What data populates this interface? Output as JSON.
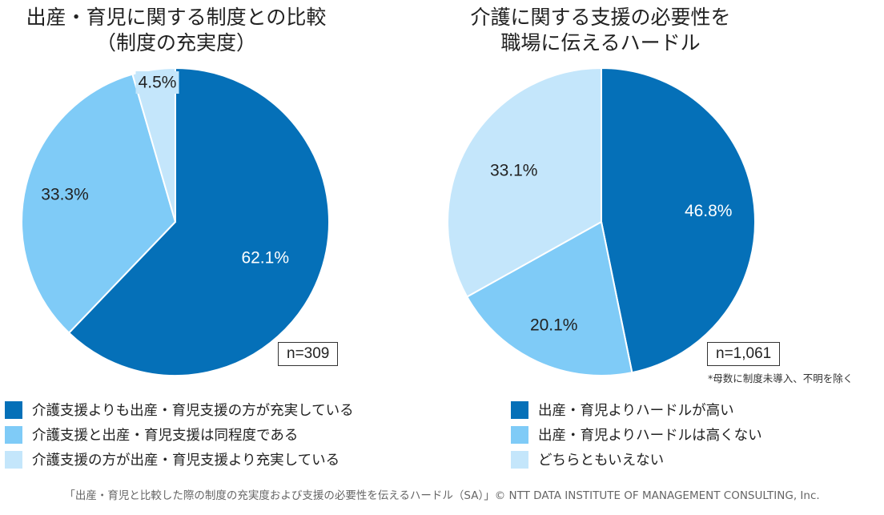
{
  "chart_data": [
    {
      "type": "pie",
      "title": "出産・育児に関する制度との比較\n（制度の充実度）",
      "n_label": "n=309",
      "labels": [
        "介護支援よりも出産・育児支援の方が充実している",
        "介護支援と出産・育児支援は同程度である",
        "介護支援の方が出産・育児支援より充実している"
      ],
      "values": [
        62.1,
        33.3,
        4.5
      ],
      "value_labels": [
        "62.1%",
        "33.3%",
        "4.5%"
      ],
      "colors": [
        "#0570b8",
        "#7fcbf7",
        "#c4e6fb"
      ]
    },
    {
      "type": "pie",
      "title": "介護に関する支援の必要性を\n職場に伝えるハードル",
      "n_label": "n=1,061",
      "note": "*母数に制度未導入、不明を除く",
      "labels": [
        "出産・育児よりハードルが高い",
        "出産・育児よりハードルは高くない",
        "どちらともいえない"
      ],
      "values": [
        46.8,
        20.1,
        33.1
      ],
      "value_labels": [
        "46.8%",
        "20.1%",
        "33.1%"
      ],
      "colors": [
        "#0570b8",
        "#7fcbf7",
        "#c4e6fb"
      ]
    }
  ],
  "footer": "「出産・育児と比較した際の制度の充実度および支援の必要性を伝えるハードル（SA）」© NTT DATA INSTITUTE OF MANAGEMENT CONSULTING, Inc."
}
